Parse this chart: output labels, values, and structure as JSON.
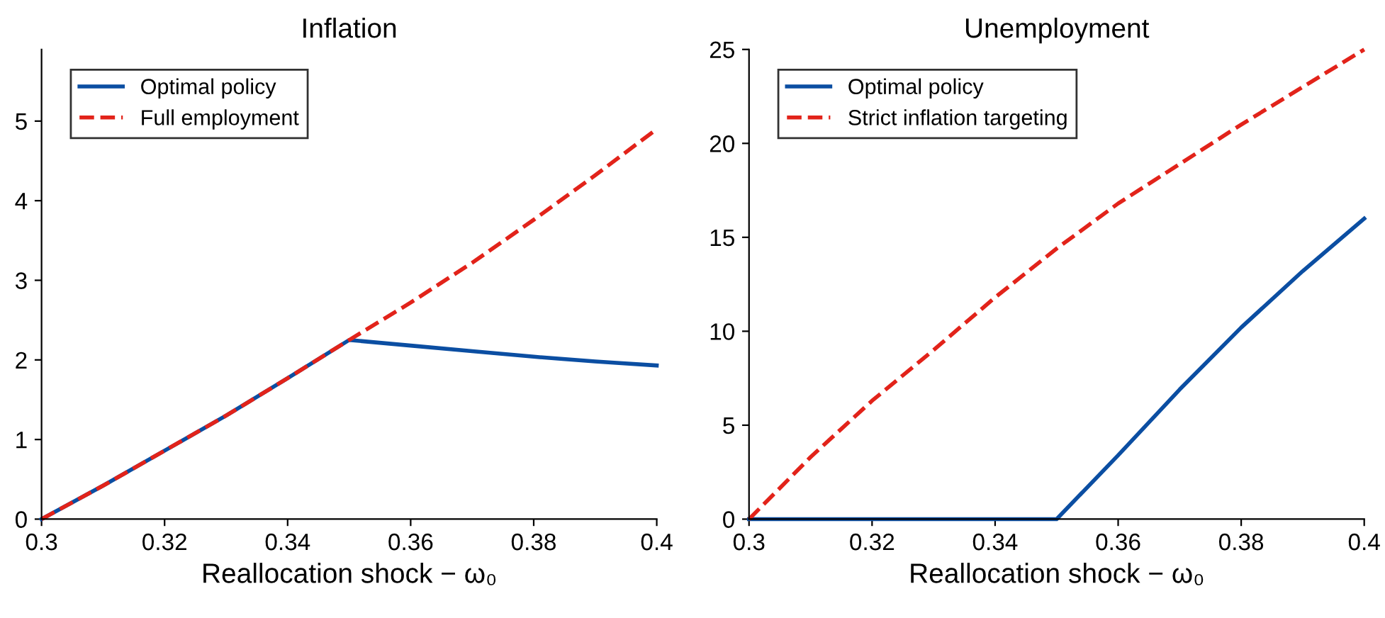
{
  "chart_data": [
    {
      "type": "line",
      "title": "Inflation",
      "xlabel": "Reallocation shock − ω₀",
      "xlim": [
        0.3,
        0.4
      ],
      "xticks": [
        0.3,
        0.32,
        0.34,
        0.36,
        0.38,
        0.4
      ],
      "ylim": [
        0,
        5.9
      ],
      "yticks": [
        0,
        1,
        2,
        3,
        4,
        5
      ],
      "grid": false,
      "legend": "top left",
      "marker": "none",
      "series": [
        {
          "name": "Optimal policy",
          "color": "#0b4ea2",
          "line_style": "solid",
          "x": [
            0.3,
            0.31,
            0.32,
            0.33,
            0.34,
            0.35,
            0.36,
            0.37,
            0.38,
            0.39,
            0.4
          ],
          "values": [
            0,
            0.42,
            0.86,
            1.3,
            1.77,
            2.25,
            2.18,
            2.11,
            2.04,
            1.98,
            1.93
          ]
        },
        {
          "name": "Full employment",
          "color": "#e2231a",
          "line_style": "dashed",
          "x": [
            0.3,
            0.31,
            0.32,
            0.33,
            0.34,
            0.35,
            0.36,
            0.37,
            0.38,
            0.39,
            0.4
          ],
          "values": [
            0,
            0.42,
            0.86,
            1.3,
            1.77,
            2.25,
            2.72,
            3.22,
            3.76,
            4.32,
            4.9
          ]
        }
      ]
    },
    {
      "type": "line",
      "title": "Unemployment",
      "xlabel": "Reallocation shock − ω₀",
      "xlim": [
        0.3,
        0.4
      ],
      "xticks": [
        0.3,
        0.32,
        0.34,
        0.36,
        0.38,
        0.4
      ],
      "ylim": [
        0,
        25
      ],
      "yticks": [
        0,
        5,
        10,
        15,
        20,
        25
      ],
      "grid": false,
      "legend": "top left",
      "marker": "none",
      "series": [
        {
          "name": "Optimal policy",
          "color": "#0b4ea2",
          "line_style": "solid",
          "x": [
            0.3,
            0.31,
            0.32,
            0.33,
            0.34,
            0.35,
            0.36,
            0.37,
            0.38,
            0.39,
            0.4
          ],
          "values": [
            0,
            0,
            0,
            0,
            0,
            0,
            3.4,
            6.9,
            10.2,
            13.2,
            16
          ]
        },
        {
          "name": "Strict inflation targeting",
          "color": "#e2231a",
          "line_style": "dashed",
          "x": [
            0.3,
            0.31,
            0.32,
            0.33,
            0.34,
            0.35,
            0.36,
            0.37,
            0.38,
            0.39,
            0.4
          ],
          "values": [
            0,
            3.3,
            6.3,
            9.0,
            11.8,
            14.4,
            16.8,
            18.9,
            21.0,
            23.0,
            25
          ]
        }
      ]
    }
  ]
}
